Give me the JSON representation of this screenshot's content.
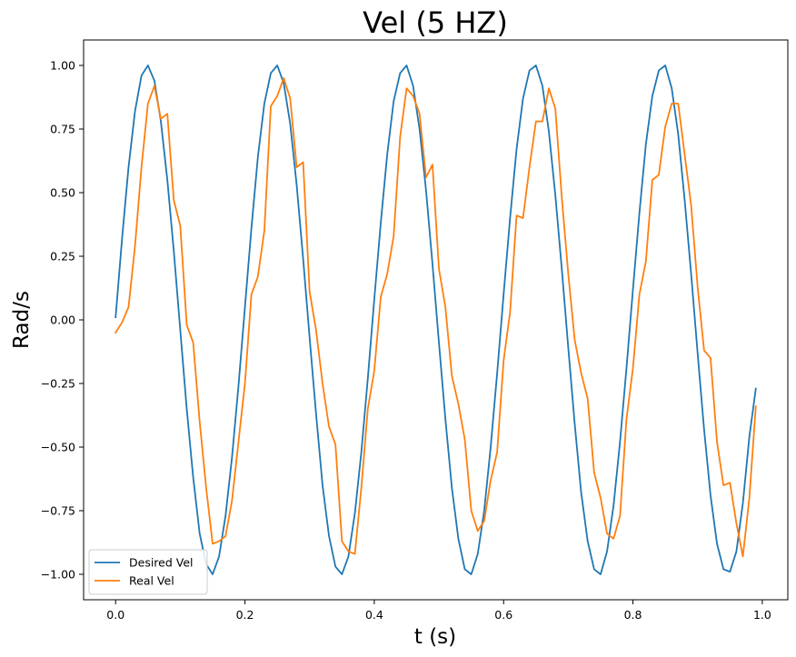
{
  "chart_data": {
    "type": "line",
    "title": "Vel (5 HZ)",
    "xlabel": "t (s)",
    "ylabel": "Rad/s",
    "xlim": [
      -0.0495,
      1.0395
    ],
    "ylim": [
      -1.1,
      1.1
    ],
    "xticks": [
      0.0,
      0.2,
      0.4,
      0.6,
      0.8,
      1.0
    ],
    "xtick_labels": [
      "0.0",
      "0.2",
      "0.4",
      "0.6",
      "0.8",
      "1.0"
    ],
    "yticks": [
      -1.0,
      -0.75,
      -0.5,
      -0.25,
      0.0,
      0.25,
      0.5,
      0.75,
      1.0
    ],
    "ytick_labels": [
      "−1.00",
      "−0.75",
      "−0.50",
      "−0.25",
      "0.00",
      "0.25",
      "0.50",
      "0.75",
      "1.00"
    ],
    "grid": false,
    "legend_position": "lower-left",
    "series": [
      {
        "name": "Desired Vel",
        "color": "#1f77b4",
        "x": [
          0.0,
          0.01,
          0.02,
          0.03,
          0.04,
          0.05,
          0.06,
          0.07,
          0.08,
          0.09,
          0.1,
          0.11,
          0.12,
          0.13,
          0.14,
          0.15,
          0.16,
          0.17,
          0.18,
          0.19,
          0.2,
          0.21,
          0.22,
          0.23,
          0.24,
          0.25,
          0.26,
          0.27,
          0.28,
          0.29,
          0.3,
          0.31,
          0.32,
          0.33,
          0.34,
          0.35,
          0.36,
          0.37,
          0.38,
          0.39,
          0.4,
          0.41,
          0.42,
          0.43,
          0.44,
          0.45,
          0.46,
          0.47,
          0.48,
          0.49,
          0.5,
          0.51,
          0.52,
          0.53,
          0.54,
          0.55,
          0.56,
          0.57,
          0.58,
          0.59,
          0.6,
          0.61,
          0.62,
          0.63,
          0.64,
          0.65,
          0.66,
          0.67,
          0.68,
          0.69,
          0.7,
          0.71,
          0.72,
          0.73,
          0.74,
          0.75,
          0.76,
          0.77,
          0.78,
          0.79,
          0.8,
          0.81,
          0.82,
          0.83,
          0.84,
          0.85,
          0.86,
          0.87,
          0.88,
          0.89,
          0.9,
          0.91,
          0.92,
          0.93,
          0.94,
          0.95,
          0.96,
          0.97,
          0.98,
          0.99
        ],
        "y": [
          0.01,
          0.32,
          0.6,
          0.82,
          0.96,
          1.0,
          0.94,
          0.78,
          0.55,
          0.27,
          -0.04,
          -0.35,
          -0.62,
          -0.84,
          -0.96,
          -1.0,
          -0.93,
          -0.77,
          -0.54,
          -0.26,
          0.05,
          0.36,
          0.64,
          0.85,
          0.97,
          1.0,
          0.93,
          0.77,
          0.53,
          0.24,
          -0.07,
          -0.37,
          -0.65,
          -0.85,
          -0.97,
          -1.0,
          -0.93,
          -0.76,
          -0.52,
          -0.23,
          0.08,
          0.38,
          0.65,
          0.86,
          0.97,
          1.0,
          0.92,
          0.75,
          0.51,
          0.22,
          -0.09,
          -0.39,
          -0.66,
          -0.86,
          -0.98,
          -1.0,
          -0.92,
          -0.75,
          -0.5,
          -0.21,
          0.1,
          0.4,
          0.67,
          0.87,
          0.98,
          1.0,
          0.92,
          0.74,
          0.49,
          0.2,
          -0.11,
          -0.41,
          -0.68,
          -0.87,
          -0.98,
          -1.0,
          -0.91,
          -0.73,
          -0.48,
          -0.19,
          0.12,
          0.42,
          0.69,
          0.88,
          0.98,
          1.0,
          0.91,
          0.73,
          0.47,
          0.18,
          -0.13,
          -0.43,
          -0.69,
          -0.88,
          -0.98,
          -0.99,
          -0.91,
          -0.72,
          -0.46,
          -0.27
        ]
      },
      {
        "name": "Real Vel",
        "color": "#ff7f0e",
        "x": [
          0.0,
          0.01,
          0.02,
          0.03,
          0.04,
          0.05,
          0.06,
          0.07,
          0.08,
          0.09,
          0.1,
          0.11,
          0.12,
          0.13,
          0.14,
          0.15,
          0.16,
          0.17,
          0.18,
          0.19,
          0.2,
          0.21,
          0.22,
          0.23,
          0.24,
          0.25,
          0.26,
          0.27,
          0.28,
          0.29,
          0.3,
          0.31,
          0.32,
          0.33,
          0.34,
          0.35,
          0.36,
          0.37,
          0.38,
          0.39,
          0.4,
          0.41,
          0.42,
          0.43,
          0.44,
          0.45,
          0.46,
          0.47,
          0.48,
          0.49,
          0.5,
          0.51,
          0.52,
          0.53,
          0.54,
          0.55,
          0.56,
          0.57,
          0.58,
          0.59,
          0.6,
          0.61,
          0.62,
          0.63,
          0.64,
          0.65,
          0.66,
          0.67,
          0.68,
          0.69,
          0.7,
          0.71,
          0.72,
          0.73,
          0.74,
          0.75,
          0.76,
          0.77,
          0.78,
          0.79,
          0.8,
          0.81,
          0.82,
          0.83,
          0.84,
          0.85,
          0.86,
          0.87,
          0.88,
          0.89,
          0.9,
          0.91,
          0.92,
          0.93,
          0.94,
          0.95,
          0.96,
          0.97,
          0.98,
          0.99
        ],
        "y": [
          -0.05,
          -0.01,
          0.05,
          0.29,
          0.6,
          0.85,
          0.92,
          0.79,
          0.81,
          0.47,
          0.37,
          -0.02,
          -0.09,
          -0.4,
          -0.66,
          -0.88,
          -0.87,
          -0.85,
          -0.71,
          -0.48,
          -0.25,
          0.1,
          0.17,
          0.35,
          0.84,
          0.88,
          0.95,
          0.87,
          0.6,
          0.62,
          0.11,
          -0.04,
          -0.25,
          -0.42,
          -0.49,
          -0.87,
          -0.91,
          -0.92,
          -0.66,
          -0.35,
          -0.2,
          0.09,
          0.18,
          0.33,
          0.72,
          0.91,
          0.88,
          0.81,
          0.56,
          0.61,
          0.2,
          0.05,
          -0.22,
          -0.33,
          -0.47,
          -0.75,
          -0.83,
          -0.79,
          -0.63,
          -0.52,
          -0.16,
          0.03,
          0.41,
          0.4,
          0.6,
          0.78,
          0.78,
          0.91,
          0.83,
          0.48,
          0.18,
          -0.08,
          -0.21,
          -0.31,
          -0.6,
          -0.7,
          -0.84,
          -0.86,
          -0.77,
          -0.39,
          -0.19,
          0.1,
          0.23,
          0.55,
          0.57,
          0.76,
          0.85,
          0.85,
          0.65,
          0.45,
          0.13,
          -0.12,
          -0.15,
          -0.48,
          -0.65,
          -0.64,
          -0.8,
          -0.93,
          -0.7,
          -0.34
        ]
      }
    ]
  }
}
